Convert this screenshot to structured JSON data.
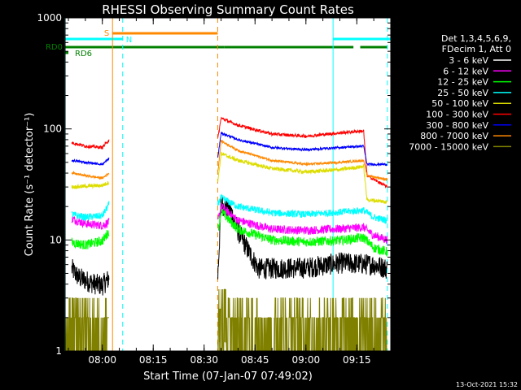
{
  "chart_data": {
    "type": "line",
    "title": "RHESSI Observing Summary Count Rates",
    "xlabel": "Start Time (07-Jan-07 07:49:02)",
    "ylabel": "Count Rate (s⁻¹ detector⁻¹)",
    "y_scale": "log",
    "ylim": [
      1,
      1000
    ],
    "xlim": [
      "07:49:02",
      "09:25:00"
    ],
    "x_ticks": [
      "08:00",
      "08:15",
      "08:30",
      "08:45",
      "09:00",
      "09:15"
    ],
    "y_ticks": [
      "1",
      "10",
      "100",
      "1000"
    ],
    "legend_title": [
      "Det 1,3,4,5,6,9,",
      "FDecim 1, Att 0"
    ],
    "footer_stamp": "13-Oct-2021 15:32",
    "flag_labels": {
      "saa": "S",
      "night": "N",
      "rd0": "RD0",
      "rd6": "RD6"
    },
    "flags": {
      "saa": [
        [
          "08:03",
          "08:34"
        ]
      ],
      "night": [
        [
          "07:49",
          "08:06"
        ],
        [
          "09:08",
          "09:25"
        ]
      ],
      "rd0": [
        [
          "07:49",
          "08:34"
        ],
        [
          "08:34",
          "08:36"
        ],
        [
          "08:36",
          "09:14"
        ],
        [
          "09:16",
          "09:24"
        ]
      ],
      "rd6": [
        [
          "07:49",
          "07:50"
        ]
      ]
    },
    "vlines": [
      {
        "t": "07:49",
        "color": "#00ffff",
        "dash": false
      },
      {
        "t": "08:03",
        "color": "#ff8800",
        "dash": false
      },
      {
        "t": "08:06",
        "color": "#00ffff",
        "dash": true
      },
      {
        "t": "08:34",
        "color": "#ff8800",
        "dash": true
      },
      {
        "t": "09:08",
        "color": "#00ffff",
        "dash": false
      },
      {
        "t": "09:24",
        "color": "#00ffff",
        "dash": true
      }
    ],
    "series": [
      {
        "name": "3 - 6 keV",
        "color": "#000000",
        "noise": 0.55,
        "points": [
          [
            "07:51",
            5.5
          ],
          [
            "07:53",
            4.6
          ],
          [
            "07:56",
            4.2
          ],
          [
            "07:58",
            4.0
          ],
          [
            "08:00",
            3.9
          ],
          [
            "08:02",
            4.5
          ],
          [
            "08:34",
            4.5
          ],
          [
            "08:35",
            21
          ],
          [
            "08:38",
            18
          ],
          [
            "08:40",
            12
          ],
          [
            "08:43",
            8
          ],
          [
            "08:46",
            5.5
          ],
          [
            "09:00",
            5.6
          ],
          [
            "09:10",
            6.2
          ],
          [
            "09:20",
            6.0
          ],
          [
            "09:24",
            5.5
          ]
        ]
      },
      {
        "name": "6 - 12 keV",
        "color": "#ff00ff",
        "noise": 0.22,
        "points": [
          [
            "07:51",
            15.5
          ],
          [
            "07:55",
            14
          ],
          [
            "08:00",
            13.5
          ],
          [
            "08:02",
            14.5
          ],
          [
            "08:34",
            14.5
          ],
          [
            "08:35",
            20
          ],
          [
            "08:40",
            15
          ],
          [
            "08:50",
            12.5
          ],
          [
            "09:00",
            12.2
          ],
          [
            "09:10",
            12.6
          ],
          [
            "09:17",
            13
          ],
          [
            "09:20",
            11
          ],
          [
            "09:24",
            10
          ]
        ]
      },
      {
        "name": "12 - 25 keV",
        "color": "#00ff00",
        "noise": 0.25,
        "points": [
          [
            "07:51",
            9.5
          ],
          [
            "07:55",
            9
          ],
          [
            "08:00",
            9.8
          ],
          [
            "08:02",
            12
          ],
          [
            "08:34",
            12
          ],
          [
            "08:35",
            18
          ],
          [
            "08:40",
            12.5
          ],
          [
            "08:50",
            10
          ],
          [
            "09:00",
            9.6
          ],
          [
            "09:10",
            9.9
          ],
          [
            "09:17",
            10.5
          ],
          [
            "09:20",
            8.5
          ],
          [
            "09:24",
            7.8
          ]
        ]
      },
      {
        "name": "25 - 50 keV",
        "color": "#00ffff",
        "noise": 0.18,
        "points": [
          [
            "07:51",
            17
          ],
          [
            "07:55",
            16
          ],
          [
            "08:00",
            16.5
          ],
          [
            "08:02",
            21
          ],
          [
            "08:34",
            21
          ],
          [
            "08:35",
            24
          ],
          [
            "08:40",
            20
          ],
          [
            "08:50",
            17.5
          ],
          [
            "09:00",
            17
          ],
          [
            "09:10",
            17.8
          ],
          [
            "09:17",
            18.5
          ],
          [
            "09:20",
            16
          ],
          [
            "09:24",
            15
          ]
        ]
      },
      {
        "name": "50 - 100 keV",
        "color": "#dddd00",
        "noise": 0.1,
        "points": [
          [
            "07:51",
            30
          ],
          [
            "08:00",
            31
          ],
          [
            "08:02",
            33
          ],
          [
            "08:34",
            33
          ],
          [
            "08:35",
            60
          ],
          [
            "08:40",
            52
          ],
          [
            "08:50",
            44
          ],
          [
            "09:00",
            41
          ],
          [
            "09:10",
            43
          ],
          [
            "09:17",
            46
          ],
          [
            "09:18",
            23
          ],
          [
            "09:24",
            22
          ]
        ]
      },
      {
        "name": "100 - 300 keV",
        "color": "#ff0000",
        "noise": 0.08,
        "points": [
          [
            "07:51",
            75
          ],
          [
            "07:55",
            70
          ],
          [
            "08:00",
            68
          ],
          [
            "08:02",
            80
          ],
          [
            "08:34",
            80
          ],
          [
            "08:35",
            125
          ],
          [
            "08:40",
            108
          ],
          [
            "08:50",
            90
          ],
          [
            "09:00",
            86
          ],
          [
            "09:10",
            92
          ],
          [
            "09:17",
            96
          ],
          [
            "09:18",
            38
          ],
          [
            "09:24",
            30
          ]
        ]
      },
      {
        "name": "300 - 800 keV",
        "color": "#0000ff",
        "noise": 0.06,
        "points": [
          [
            "07:51",
            52
          ],
          [
            "07:55",
            50
          ],
          [
            "08:00",
            48
          ],
          [
            "08:02",
            54
          ],
          [
            "08:34",
            54
          ],
          [
            "08:35",
            92
          ],
          [
            "08:40",
            80
          ],
          [
            "08:50",
            68
          ],
          [
            "09:00",
            65
          ],
          [
            "09:10",
            68
          ],
          [
            "09:17",
            70
          ],
          [
            "09:18",
            48
          ],
          [
            "09:24",
            48
          ]
        ]
      },
      {
        "name": "800 - 7000 keV",
        "color": "#ff8800",
        "noise": 0.06,
        "points": [
          [
            "07:51",
            40
          ],
          [
            "07:55",
            38
          ],
          [
            "08:00",
            36
          ],
          [
            "08:02",
            40
          ],
          [
            "08:34",
            40
          ],
          [
            "08:35",
            78
          ],
          [
            "08:40",
            64
          ],
          [
            "08:50",
            52
          ],
          [
            "09:00",
            48
          ],
          [
            "09:10",
            50
          ],
          [
            "09:17",
            52
          ],
          [
            "09:18",
            38
          ],
          [
            "09:24",
            35
          ]
        ]
      },
      {
        "name": "7000 - 15000 keV",
        "color": "#808000",
        "noise": 0.9,
        "digital": true,
        "points": [
          [
            "07:49",
            2.5
          ],
          [
            "07:51",
            1.6
          ],
          [
            "08:02",
            1.7
          ],
          [
            "08:34",
            3.5
          ],
          [
            "08:35",
            3.2
          ],
          [
            "08:36",
            3.0
          ],
          [
            "08:38",
            1.8
          ],
          [
            "09:00",
            1.6
          ],
          [
            "09:10",
            1.9
          ],
          [
            "09:24",
            1.6
          ]
        ]
      }
    ]
  }
}
